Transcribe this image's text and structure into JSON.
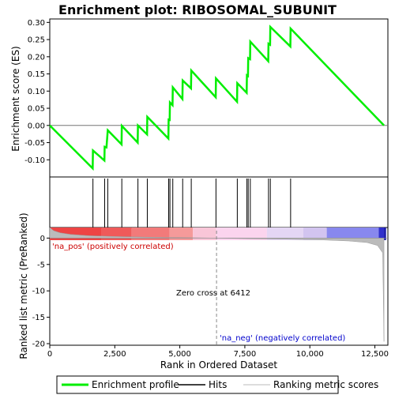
{
  "chart_data": {
    "type": "line",
    "title": "Enrichment plot: RIBOSOMAL_SUBUNIT",
    "xlabel": "Rank in Ordered Dataset",
    "ylabel_top": "Enrichment score (ES)",
    "ylabel_bottom": "Ranked list metric (PreRanked)",
    "xlim": [
      0,
      13000
    ],
    "ylim_top": [
      -0.15,
      0.31
    ],
    "ylim_bottom": [
      -20.3,
      2.0
    ],
    "x_ticks": [
      0,
      2500,
      5000,
      7500,
      10000,
      12500
    ],
    "x_tick_labels": [
      "0",
      "2,500",
      "5,000",
      "7,500",
      "10,000",
      "12,500"
    ],
    "y_ticks_top": [
      -0.1,
      -0.05,
      0.0,
      0.05,
      0.1,
      0.15,
      0.2,
      0.25,
      0.3
    ],
    "y_tick_labels_top": [
      "-0.10",
      "-0.05",
      "0.00",
      "0.05",
      "0.10",
      "0.15",
      "0.20",
      "0.25",
      "0.30"
    ],
    "y_ticks_bottom": [
      0,
      -5,
      -10,
      -15,
      -20
    ],
    "y_tick_labels_bottom": [
      "0",
      "-5",
      "-10",
      "-15",
      "-20"
    ],
    "series": [
      {
        "name": "Enrichment profile",
        "color": "#00ee00",
        "points": [
          [
            0,
            0.0
          ],
          [
            1650,
            -0.125
          ],
          [
            1660,
            -0.073
          ],
          [
            2100,
            -0.102
          ],
          [
            2110,
            -0.062
          ],
          [
            2180,
            -0.064
          ],
          [
            2230,
            -0.014
          ],
          [
            2760,
            -0.055
          ],
          [
            2770,
            -0.001
          ],
          [
            3380,
            -0.05
          ],
          [
            3390,
            0.0
          ],
          [
            3740,
            -0.026
          ],
          [
            3750,
            0.025
          ],
          [
            4560,
            -0.038
          ],
          [
            4570,
            0.017
          ],
          [
            4610,
            0.016
          ],
          [
            4620,
            0.067
          ],
          [
            4720,
            0.059
          ],
          [
            4730,
            0.111
          ],
          [
            5100,
            0.077
          ],
          [
            5110,
            0.131
          ],
          [
            5430,
            0.108
          ],
          [
            5440,
            0.16
          ],
          [
            6380,
            0.082
          ],
          [
            6390,
            0.137
          ],
          [
            7200,
            0.069
          ],
          [
            7210,
            0.123
          ],
          [
            7570,
            0.095
          ],
          [
            7580,
            0.146
          ],
          [
            7620,
            0.144
          ],
          [
            7630,
            0.196
          ],
          [
            7700,
            0.193
          ],
          [
            7710,
            0.244
          ],
          [
            8400,
            0.187
          ],
          [
            8410,
            0.238
          ],
          [
            8470,
            0.235
          ],
          [
            8480,
            0.287
          ],
          [
            9250,
            0.23
          ],
          [
            9260,
            0.282
          ],
          [
            12850,
            0.0
          ]
        ]
      }
    ],
    "hits": [
      1660,
      2110,
      2230,
      2770,
      3390,
      3750,
      4570,
      4620,
      4730,
      5110,
      5440,
      6390,
      7210,
      7580,
      7630,
      7710,
      8410,
      8480,
      9260
    ],
    "heatmap_colors": [
      "#ee4444",
      "#ef5a5a",
      "#f27a7a",
      "#f59a9a",
      "#f9c6d8",
      "#fbd4ee",
      "#e4d6f4",
      "#d2c4f0",
      "#8888ee",
      "#3030cc",
      "#1a1aaa"
    ],
    "heatmap_breaks": [
      0,
      2000,
      3150,
      4600,
      5500,
      6400,
      8350,
      9750,
      10650,
      12650,
      12850
    ],
    "metric_profile": [
      [
        0,
        2.0
      ],
      [
        150,
        1.4
      ],
      [
        400,
        1.0
      ],
      [
        800,
        0.7
      ],
      [
        1500,
        0.45
      ],
      [
        2500,
        0.3
      ],
      [
        4000,
        0.15
      ],
      [
        5500,
        0.06
      ],
      [
        6412,
        0.0
      ],
      [
        7500,
        -0.1
      ],
      [
        9000,
        -0.2
      ],
      [
        10500,
        -0.35
      ],
      [
        11500,
        -0.55
      ],
      [
        12200,
        -0.85
      ],
      [
        12600,
        -1.4
      ],
      [
        12800,
        -2.8
      ],
      [
        12850,
        -19.6
      ]
    ],
    "zero_cross": 6412,
    "zero_cross_label": "Zero cross at 6412",
    "pos_label": "'na_pos' (positively correlated)",
    "neg_label": "'na_neg' (negatively correlated)",
    "legend": [
      {
        "label": "Enrichment profile",
        "color": "#00ee00"
      },
      {
        "label": "Hits",
        "color": "#000000"
      },
      {
        "label": "Ranking metric scores",
        "color": "#bbbbbb"
      }
    ],
    "pos_color": "#cc0000",
    "neg_color": "#0000cc"
  }
}
